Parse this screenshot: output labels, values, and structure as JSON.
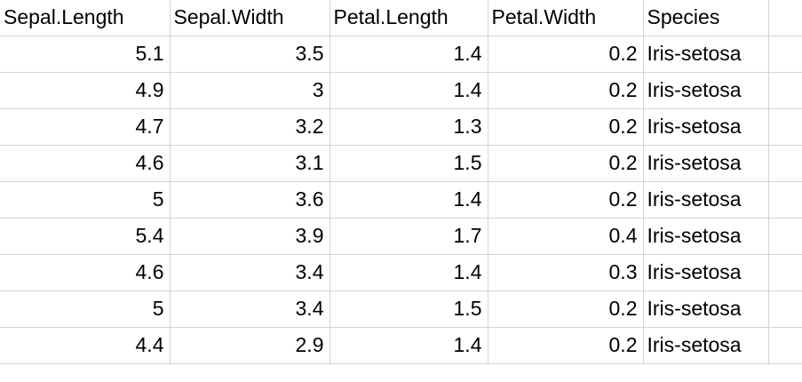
{
  "spreadsheet": {
    "headers": [
      "Sepal.Length",
      "Sepal.Width",
      "Petal.Length",
      "Petal.Width",
      "Species"
    ],
    "rows": [
      [
        "5.1",
        "3.5",
        "1.4",
        "0.2",
        "Iris-setosa"
      ],
      [
        "4.9",
        "3",
        "1.4",
        "0.2",
        "Iris-setosa"
      ],
      [
        "4.7",
        "3.2",
        "1.3",
        "0.2",
        "Iris-setosa"
      ],
      [
        "4.6",
        "3.1",
        "1.5",
        "0.2",
        "Iris-setosa"
      ],
      [
        "5",
        "3.6",
        "1.4",
        "0.2",
        "Iris-setosa"
      ],
      [
        "5.4",
        "3.9",
        "1.7",
        "0.4",
        "Iris-setosa"
      ],
      [
        "4.6",
        "3.4",
        "1.4",
        "0.3",
        "Iris-setosa"
      ],
      [
        "5",
        "3.4",
        "1.5",
        "0.2",
        "Iris-setosa"
      ],
      [
        "4.4",
        "2.9",
        "1.4",
        "0.2",
        "Iris-setosa"
      ]
    ]
  }
}
